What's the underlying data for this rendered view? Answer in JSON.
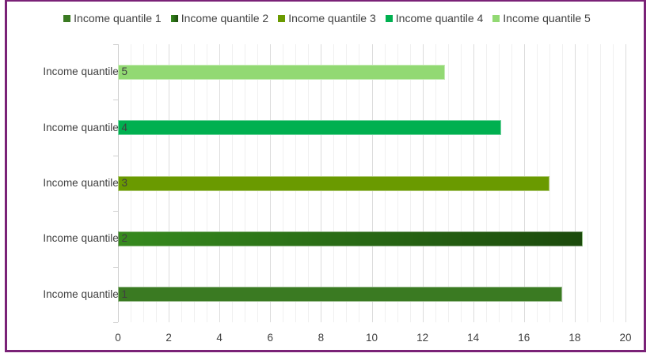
{
  "chart_data": {
    "type": "bar",
    "orientation": "horizontal",
    "title": "",
    "xlabel": "",
    "ylabel": "",
    "categories": [
      "Income quantile 1",
      "Income quantile 2",
      "Income quantile 3",
      "Income quantile 4",
      "Income quantile 5"
    ],
    "values": [
      17.5,
      18.3,
      17.0,
      15.1,
      12.9
    ],
    "xlim": [
      0,
      20
    ],
    "x_ticks": [
      "0",
      "2",
      "4",
      "6",
      "8",
      "10",
      "12",
      "14",
      "16",
      "18",
      "20"
    ],
    "grid": "vertical major + minor",
    "legend_position": "top",
    "series_colors": [
      "#3a7a22",
      "#2e7a1c",
      "#6a9a00",
      "#00b050",
      "#92d973"
    ]
  },
  "legend": [
    {
      "label": "Income quantile 1",
      "color": "#3a7a22"
    },
    {
      "label": "Income quantile 2",
      "color": "#276b18"
    },
    {
      "label": "Income quantile 3",
      "color": "#6a9a00"
    },
    {
      "label": "Income quantile 4",
      "color": "#00b050"
    },
    {
      "label": "Income quantile 5",
      "color": "#92d973"
    }
  ],
  "bars": [
    {
      "label": "Income quantile 5",
      "value": 12.9,
      "color": "#92d973"
    },
    {
      "label": "Income quantile 4",
      "value": 15.1,
      "color": "#00b050"
    },
    {
      "label": "Income quantile 3",
      "value": 17.0,
      "color": "#6a9a00"
    },
    {
      "label": "Income quantile 2",
      "value": 18.3,
      "color": "linear-gradient(90deg,#368a1e,#1c4a0c)"
    },
    {
      "label": "Income quantile 1",
      "value": 17.5,
      "color": "#3a7a22"
    }
  ],
  "frame_color": "#7a2277"
}
